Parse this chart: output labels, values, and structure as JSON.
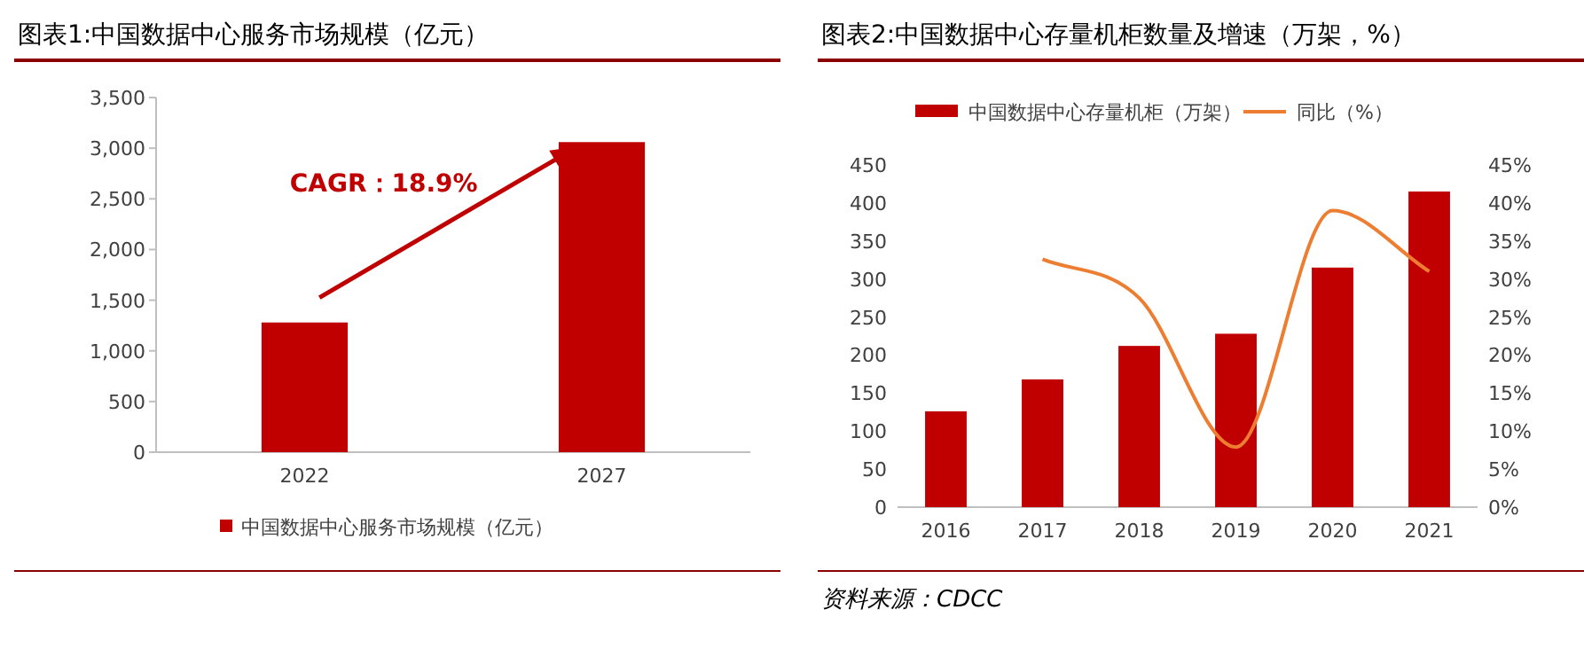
{
  "chart_data": [
    {
      "type": "bar",
      "title": "图表1:中国数据中心服务市场规模（亿元）",
      "categories": [
        "2022",
        "2027"
      ],
      "series": [
        {
          "name": "中国数据中心服务市场规模（亿元）",
          "color": "#c00000",
          "values": [
            1280,
            3060
          ]
        }
      ],
      "ylim": [
        0,
        3500
      ],
      "yticks": [
        0,
        {
          "value": 500,
          "label": "500"
        },
        {
          "value": 1000,
          "label": "1,000"
        },
        {
          "value": 1500,
          "label": "1,500"
        },
        {
          "value": 2000,
          "label": "2,000"
        },
        {
          "value": 2500,
          "label": "2,500"
        },
        {
          "value": 3000,
          "label": "3,000"
        },
        {
          "value": 3500,
          "label": "3,500"
        }
      ],
      "legend": "bottom",
      "grid": false,
      "annotations": [
        "CAGR：18.9%"
      ]
    },
    {
      "type": "bar",
      "title": "图表2:中国数据中心存量机柜数量及增速（万架，%）",
      "categories": [
        "2016",
        "2017",
        "2018",
        "2019",
        "2020",
        "2021"
      ],
      "series": [
        {
          "name": "中国数据中心存量机柜（万架）",
          "color": "#c00000",
          "values": [
            126,
            168,
            212,
            228,
            315,
            415
          ]
        },
        {
          "name": "同比（%）",
          "type": "line",
          "axis": "y2",
          "color": "#ed7d31",
          "values": [
            null,
            32.6,
            27.5,
            7.9,
            39,
            31
          ]
        }
      ],
      "ylim": [
        0,
        450
      ],
      "yticks": [
        0,
        50,
        100,
        150,
        200,
        250,
        300,
        350,
        400,
        450
      ],
      "y2lim": [
        0,
        45
      ],
      "y2ticks": [
        {
          "value": 0,
          "label": "0%"
        },
        {
          "value": 5,
          "label": "5%"
        },
        {
          "value": 10,
          "label": "10%"
        },
        {
          "value": 15,
          "label": "15%"
        },
        {
          "value": 20,
          "label": "20%"
        },
        {
          "value": 25,
          "label": "25%"
        },
        {
          "value": 30,
          "label": "30%"
        },
        {
          "value": 35,
          "label": "35%"
        },
        {
          "value": 40,
          "label": "40%"
        },
        {
          "value": 45,
          "label": "45%"
        }
      ],
      "legend": "top",
      "grid": false,
      "marker": "none",
      "annotations": [
        "资料来源：CDCC"
      ]
    }
  ]
}
